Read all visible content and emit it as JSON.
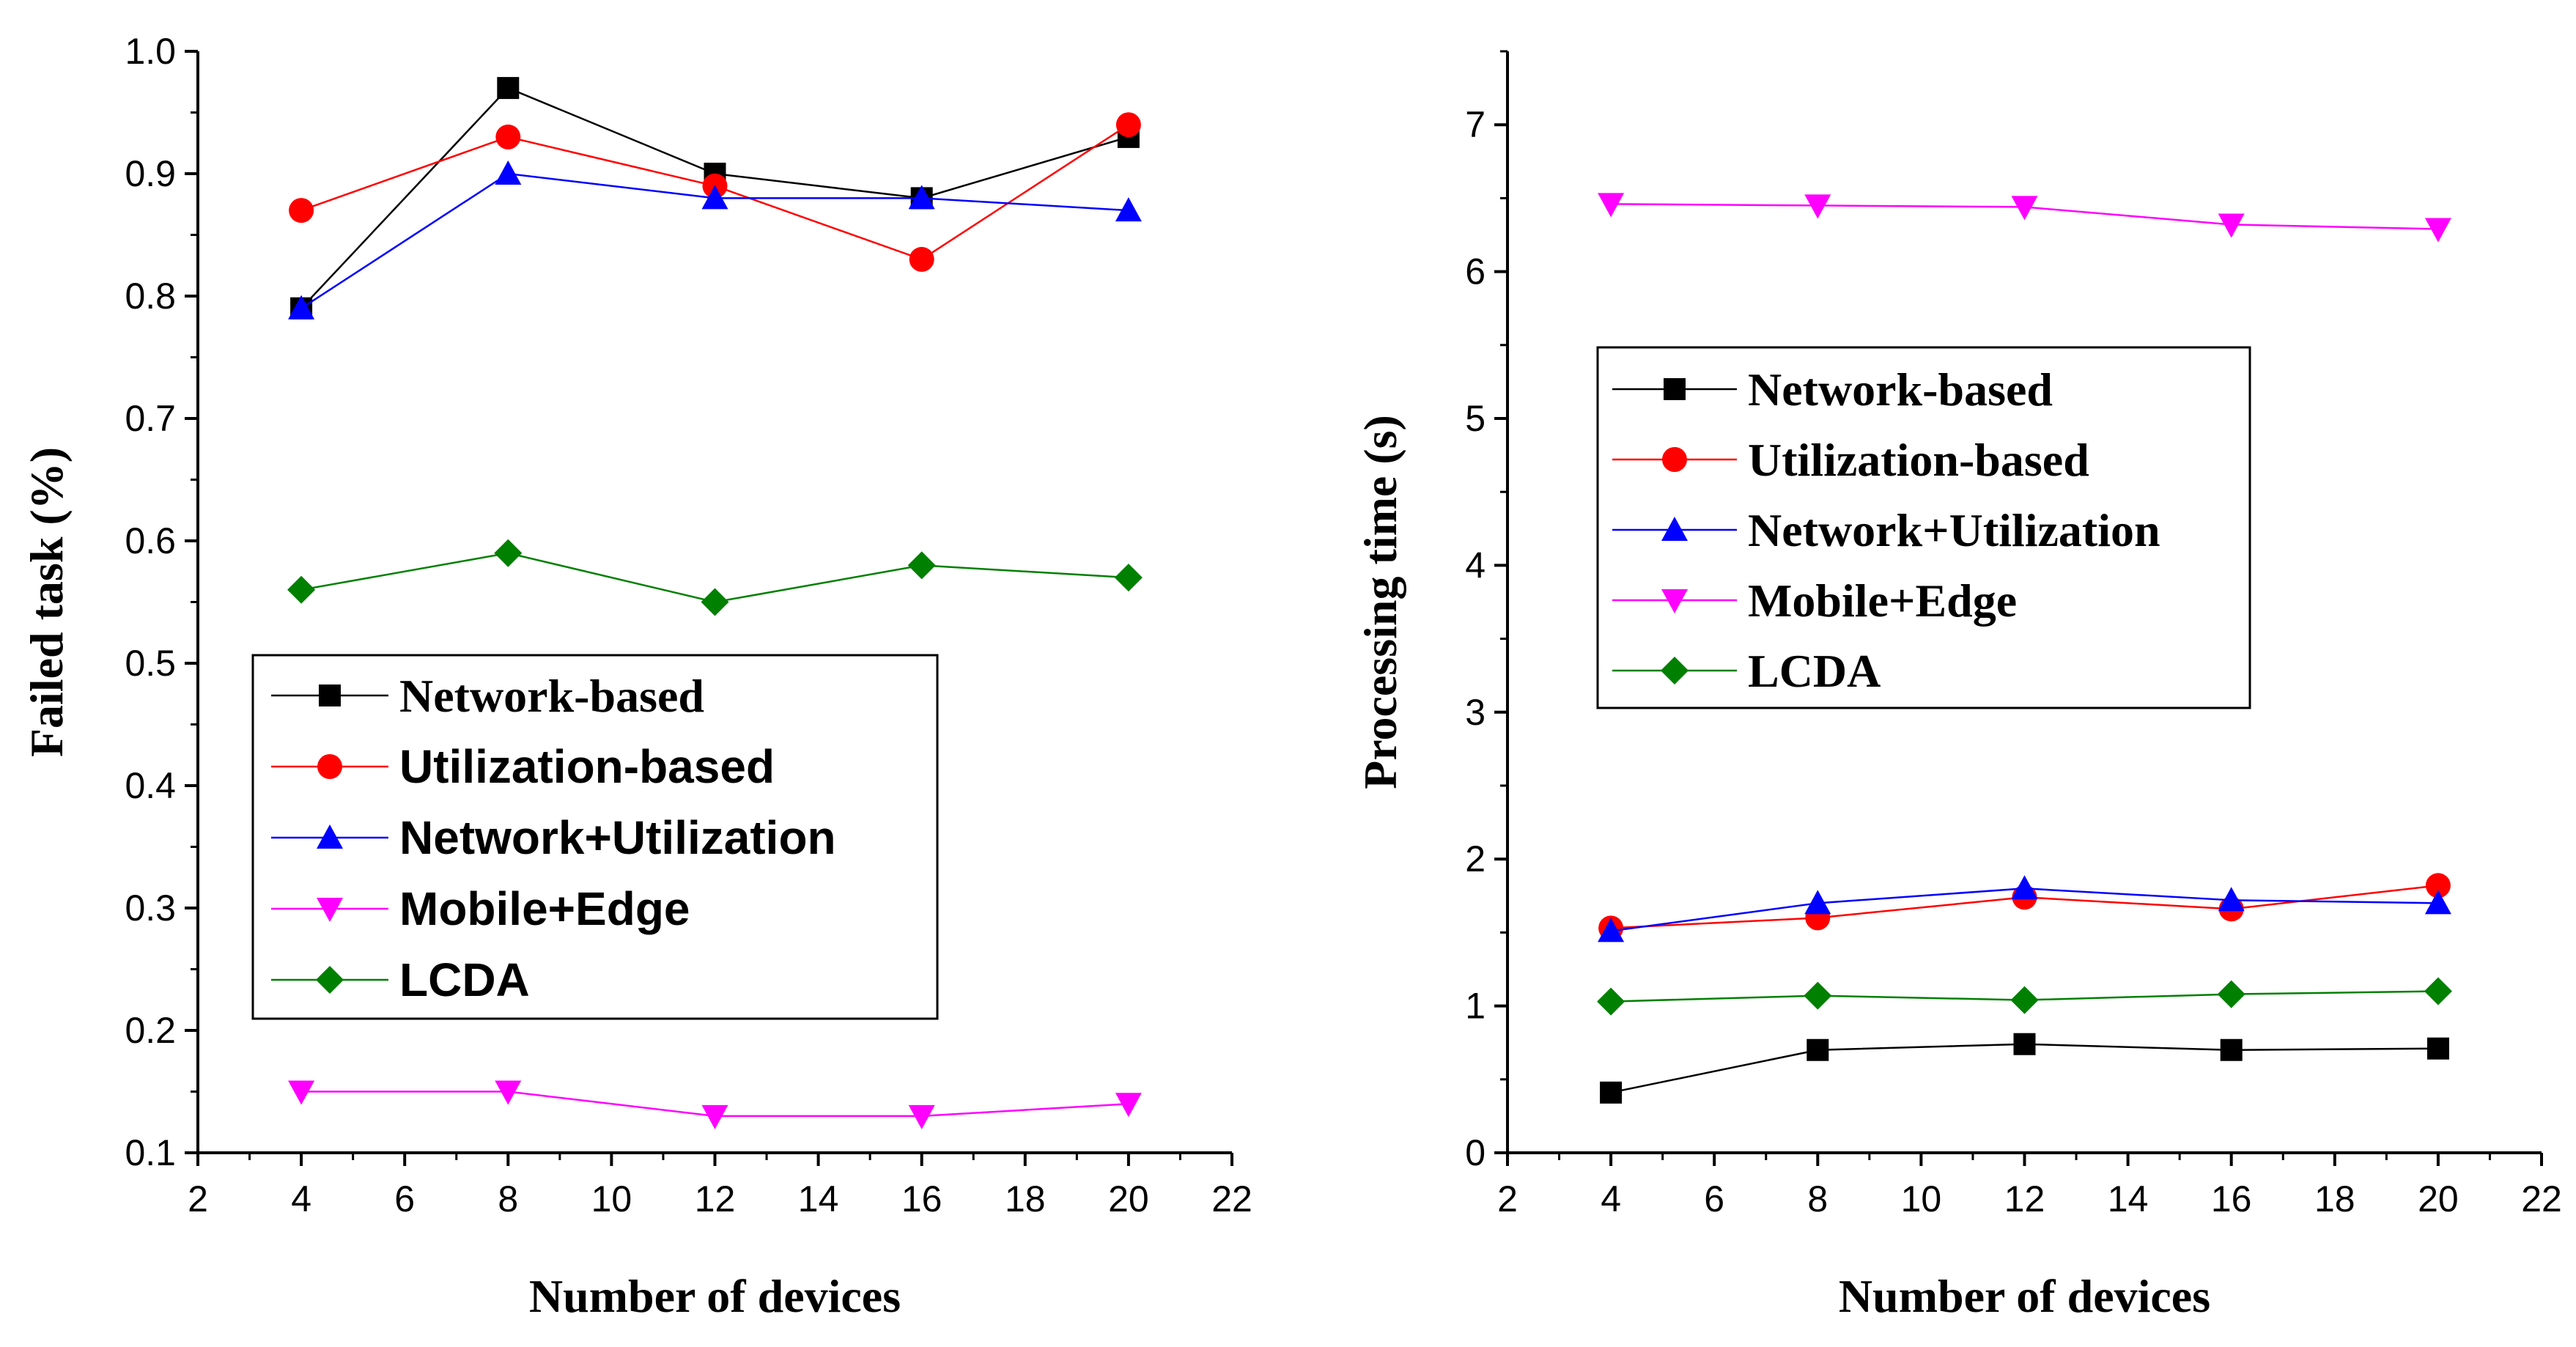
{
  "chart_data": [
    {
      "type": "line",
      "title": "",
      "xlabel": "Number of devices",
      "ylabel": "Failed task (%)",
      "xlim": [
        2,
        22
      ],
      "ylim": [
        0.1,
        1.0
      ],
      "xticks": [
        2,
        4,
        6,
        8,
        10,
        12,
        14,
        16,
        18,
        20,
        22
      ],
      "yticks": [
        0.1,
        0.2,
        0.3,
        0.4,
        0.5,
        0.6,
        0.7,
        0.8,
        0.9,
        1.0
      ],
      "ytick_labels": [
        "0.1",
        "0.2",
        "0.3",
        "0.4",
        "0.5",
        "0.6",
        "0.7",
        "0.8",
        "0.9",
        "1.0"
      ],
      "legend_position": "center-left",
      "x": [
        4,
        8,
        12,
        16,
        20
      ],
      "series": [
        {
          "name": "Network-based",
          "color": "#000000",
          "marker": "square",
          "values": [
            0.79,
            0.97,
            0.9,
            0.88,
            0.93
          ]
        },
        {
          "name": "Utilization-based",
          "color": "#ff0000",
          "marker": "circle",
          "values": [
            0.87,
            0.93,
            0.89,
            0.83,
            0.94
          ]
        },
        {
          "name": "Network+Utilization",
          "color": "#0000ff",
          "marker": "triangle-up",
          "values": [
            0.79,
            0.9,
            0.88,
            0.88,
            0.87
          ]
        },
        {
          "name": "Mobile+Edge",
          "color": "#ff00ff",
          "marker": "triangle-down",
          "values": [
            0.15,
            0.15,
            0.13,
            0.13,
            0.14
          ]
        },
        {
          "name": "LCDA",
          "color": "#008000",
          "marker": "diamond",
          "values": [
            0.56,
            0.59,
            0.55,
            0.58,
            0.57
          ]
        }
      ]
    },
    {
      "type": "line",
      "title": "",
      "xlabel": "Number of devices",
      "ylabel": "Processing time (s)",
      "xlim": [
        2,
        22
      ],
      "ylim": [
        0,
        7.5
      ],
      "xticks": [
        2,
        4,
        6,
        8,
        10,
        12,
        14,
        16,
        18,
        20,
        22
      ],
      "yticks": [
        0,
        1,
        2,
        3,
        4,
        5,
        6,
        7
      ],
      "ytick_labels": [
        "0",
        "1",
        "2",
        "3",
        "4",
        "5",
        "6",
        "7"
      ],
      "legend_position": "upper-left",
      "x": [
        4,
        8,
        12,
        16,
        20
      ],
      "series": [
        {
          "name": "Network-based",
          "color": "#000000",
          "marker": "square",
          "values": [
            0.41,
            0.7,
            0.74,
            0.7,
            0.71
          ]
        },
        {
          "name": "Utilization-based",
          "color": "#ff0000",
          "marker": "circle",
          "values": [
            1.53,
            1.6,
            1.74,
            1.66,
            1.82
          ]
        },
        {
          "name": "Network+Utilization",
          "color": "#0000ff",
          "marker": "triangle-up",
          "values": [
            1.51,
            1.7,
            1.8,
            1.72,
            1.7
          ]
        },
        {
          "name": "Mobile+Edge",
          "color": "#ff00ff",
          "marker": "triangle-down",
          "values": [
            6.46,
            6.45,
            6.44,
            6.32,
            6.29
          ]
        },
        {
          "name": "LCDA",
          "color": "#008000",
          "marker": "diamond",
          "values": [
            1.03,
            1.07,
            1.04,
            1.08,
            1.1
          ]
        }
      ]
    }
  ]
}
